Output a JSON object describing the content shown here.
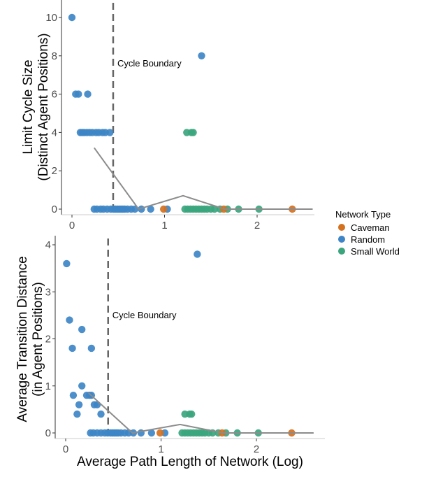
{
  "chart_data": [
    {
      "type": "scatter",
      "panel": "top",
      "ylabel_line1": "Limit Cycle Size",
      "ylabel_line2": "(Distinct Agent Positions)",
      "xlabel": "",
      "xlim": [
        -0.1,
        2.6
      ],
      "ylim": [
        -0.3,
        11
      ],
      "xticks": [
        0,
        1,
        2
      ],
      "xtick_labels": [
        "0",
        "1",
        "2"
      ],
      "yticks": [
        0,
        2,
        4,
        6,
        8,
        10
      ],
      "ytick_labels": [
        "0",
        "2",
        "4",
        "6",
        "8",
        "10"
      ],
      "grid": false,
      "boundary": {
        "x": 0.445,
        "label": "Cycle Boundary",
        "label_y": 7.6
      },
      "trend_line": {
        "x": [
          0.24,
          0.72,
          1.2,
          1.65,
          2.6
        ],
        "y": [
          3.2,
          0,
          0.7,
          0,
          0
        ]
      },
      "series": [
        {
          "name": "Random",
          "x": [
            0.0,
            0.04,
            0.07,
            0.17,
            0.09,
            0.11,
            0.13,
            0.16,
            0.19,
            0.22,
            0.26,
            0.29,
            0.33,
            0.36,
            0.41,
            0.24,
            0.27,
            0.31,
            0.34,
            0.38,
            0.42,
            0.45,
            0.47,
            0.49,
            0.51,
            0.53,
            0.55,
            0.57,
            0.6,
            0.64,
            0.68,
            0.75,
            0.85,
            1.03,
            1.4
          ],
          "y": [
            10,
            6,
            6,
            6,
            4,
            4,
            4,
            4,
            4,
            4,
            4,
            4,
            4,
            4,
            4,
            0,
            0,
            0,
            0,
            0,
            0,
            0,
            0,
            0,
            0,
            0,
            0,
            0,
            0,
            0,
            0,
            0,
            0,
            0,
            8
          ]
        },
        {
          "name": "Small World",
          "x": [
            1.24,
            1.29,
            1.31,
            1.22,
            1.25,
            1.28,
            1.31,
            1.34,
            1.37,
            1.4,
            1.43,
            1.46,
            1.5,
            1.54,
            1.6,
            1.68,
            1.8,
            2.02
          ],
          "y": [
            4,
            4,
            4,
            0,
            0,
            0,
            0,
            0,
            0,
            0,
            0,
            0,
            0,
            0,
            0,
            0,
            0,
            0
          ]
        },
        {
          "name": "Caveman",
          "x": [
            0.99,
            1.64,
            2.38
          ],
          "y": [
            0,
            0,
            0
          ]
        }
      ]
    },
    {
      "type": "scatter",
      "panel": "bottom",
      "ylabel_line1": "Average Transition Distance",
      "ylabel_line2": "(in Agent Positions)",
      "xlabel": "Average Path Length of Network (Log)",
      "xlim": [
        -0.1,
        2.7
      ],
      "ylim": [
        -0.12,
        4.2
      ],
      "xticks": [
        0,
        1,
        2
      ],
      "xtick_labels": [
        "0",
        "1",
        "2"
      ],
      "yticks": [
        0,
        1,
        2,
        3,
        4
      ],
      "ytick_labels": [
        "0",
        "1",
        "2",
        "3",
        "4"
      ],
      "grid": false,
      "boundary": {
        "x": 0.445,
        "label": "Cycle Boundary",
        "label_y": 2.5
      },
      "trend_line": {
        "x": [
          0.24,
          0.7,
          1.2,
          1.65,
          2.6
        ],
        "y": [
          0.85,
          0,
          0.18,
          0,
          0
        ]
      },
      "series": [
        {
          "name": "Random",
          "x": [
            0.01,
            0.04,
            0.07,
            0.17,
            0.27,
            0.08,
            0.12,
            0.17,
            0.22,
            0.27,
            0.33,
            0.14,
            0.25,
            0.3,
            0.37,
            0.26,
            0.29,
            0.33,
            0.37,
            0.41,
            0.44,
            0.47,
            0.49,
            0.51,
            0.53,
            0.55,
            0.58,
            0.62,
            0.66,
            0.71,
            0.79,
            0.9,
            1.04,
            1.38
          ],
          "y": [
            3.6,
            2.4,
            1.8,
            2.2,
            1.8,
            0.8,
            0.4,
            1.0,
            0.8,
            0.8,
            0.6,
            0.6,
            0.8,
            0.6,
            0.4,
            0,
            0,
            0,
            0,
            0,
            0,
            0,
            0,
            0,
            0,
            0,
            0,
            0,
            0,
            0,
            0,
            0,
            0,
            3.8
          ]
        },
        {
          "name": "Small World",
          "x": [
            1.25,
            1.3,
            1.32,
            1.22,
            1.25,
            1.28,
            1.31,
            1.34,
            1.37,
            1.4,
            1.43,
            1.46,
            1.5,
            1.54,
            1.6,
            1.68,
            1.8,
            2.02
          ],
          "y": [
            0.4,
            0.4,
            0.4,
            0,
            0,
            0,
            0,
            0,
            0,
            0,
            0,
            0,
            0,
            0,
            0,
            0,
            0,
            0
          ]
        },
        {
          "name": "Caveman",
          "x": [
            0.99,
            1.64,
            2.37
          ],
          "y": [
            0,
            0,
            0
          ]
        }
      ]
    }
  ],
  "legend": {
    "title": "Network Type",
    "placement": "right",
    "items": [
      {
        "label": "Caveman",
        "color": "#d4711f"
      },
      {
        "label": "Random",
        "color": "#3d85c6"
      },
      {
        "label": "Small World",
        "color": "#3ba57e"
      }
    ]
  },
  "colors": {
    "Caveman": "#d4711f",
    "Random": "#3d85c6",
    "Small World": "#3ba57e",
    "trend": "#8c8c8c",
    "boundary": "#666666",
    "axis": "#333333"
  }
}
